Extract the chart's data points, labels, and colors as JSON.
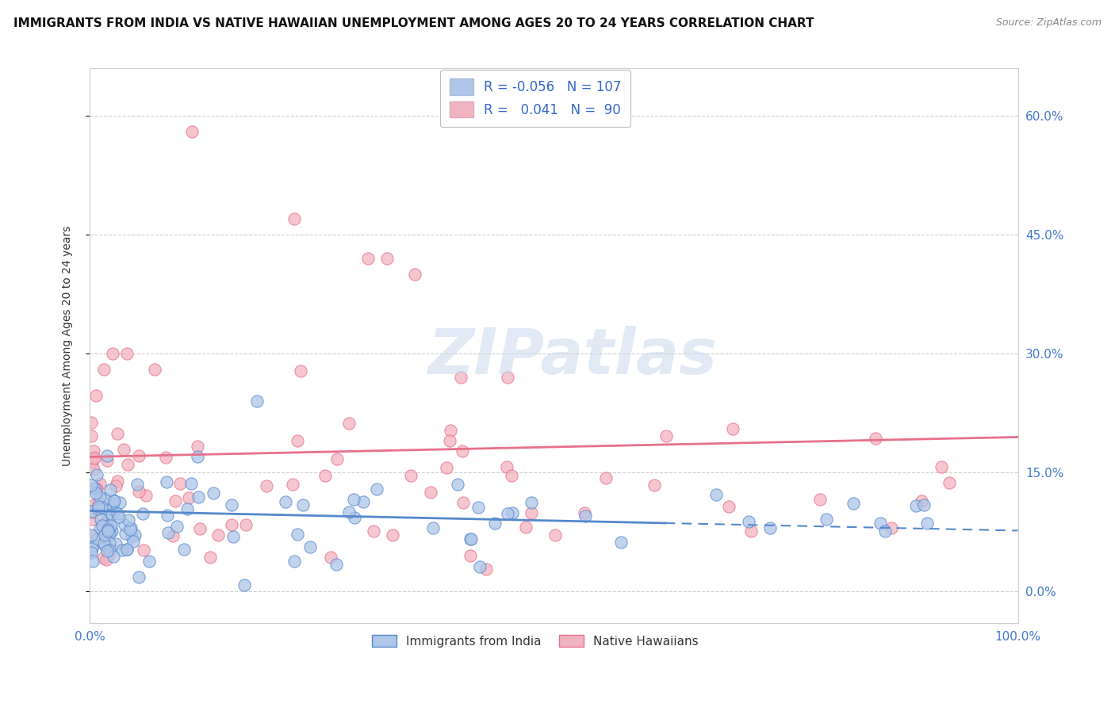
{
  "title": "IMMIGRANTS FROM INDIA VS NATIVE HAWAIIAN UNEMPLOYMENT AMONG AGES 20 TO 24 YEARS CORRELATION CHART",
  "source": "Source: ZipAtlas.com",
  "ylabel": "Unemployment Among Ages 20 to 24 years",
  "ytick_vals": [
    0,
    15,
    30,
    45,
    60
  ],
  "xlim": [
    0,
    100
  ],
  "ylim": [
    -4,
    66
  ],
  "color_blue": "#aec6e8",
  "color_pink": "#f2b3c0",
  "line_blue": "#5588cc",
  "line_pink": "#e8708a",
  "background_color": "#ffffff",
  "grid_color": "#cccccc",
  "watermark_text": "ZIPatlas",
  "title_fontsize": 11,
  "source_fontsize": 9,
  "label_fontsize": 10,
  "tick_fontsize": 11,
  "legend_fontsize": 12
}
